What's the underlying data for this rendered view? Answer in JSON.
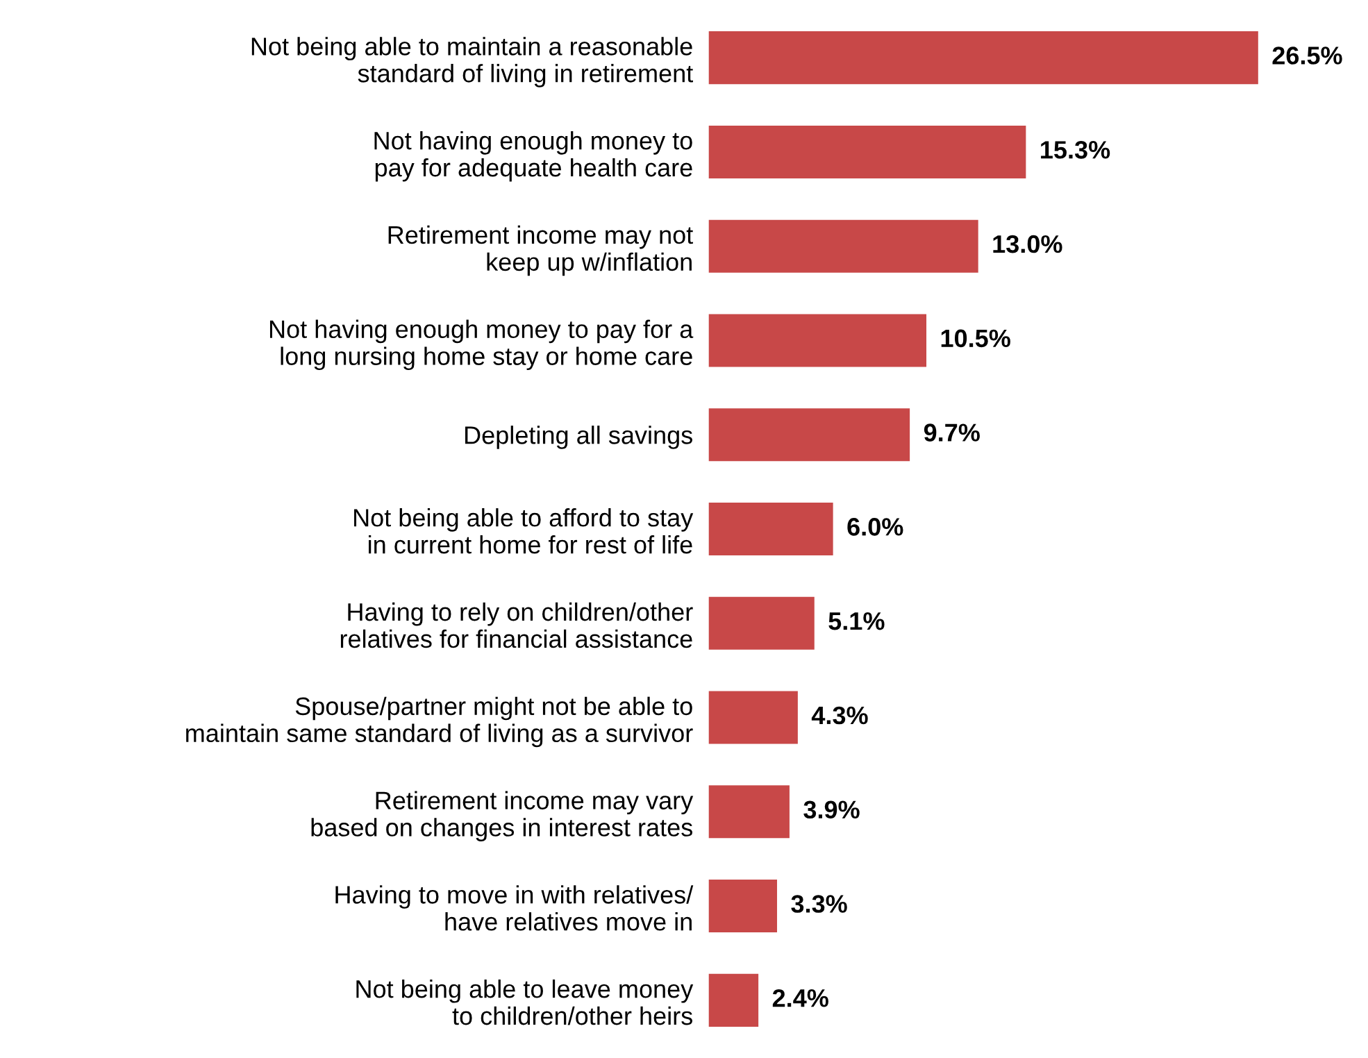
{
  "chart_data": {
    "type": "bar",
    "orientation": "horizontal",
    "categories": [
      "Not being able to maintain a reasonable\nstandard of living in retirement",
      "Not having enough money to\npay for adequate health care",
      "Retirement income may not\nkeep up w/inflation",
      "Not having enough money to pay for a\nlong nursing home stay or home care",
      "Depleting all savings",
      "Not being able to afford to stay\nin current home for rest of life",
      "Having to rely on children/other\nrelatives for financial assistance",
      "Spouse/partner might not be able to\nmaintain same standard of living as a survivor",
      "Retirement income may vary\nbased on changes in interest rates",
      "Having to move in with relatives/\nhave relatives move in",
      "Not being able to leave money\nto children/other heirs"
    ],
    "values": [
      26.5,
      15.3,
      13.0,
      10.5,
      9.7,
      6.0,
      5.1,
      4.3,
      3.9,
      3.3,
      2.4
    ],
    "value_labels": [
      "26.5%",
      "15.3%",
      "13.0%",
      "10.5%",
      "9.7%",
      "6.0%",
      "5.1%",
      "4.3%",
      "3.9%",
      "3.3%",
      "2.4%"
    ],
    "color": "#c84848",
    "tick_labels": "y",
    "grid": false,
    "legend": false
  }
}
